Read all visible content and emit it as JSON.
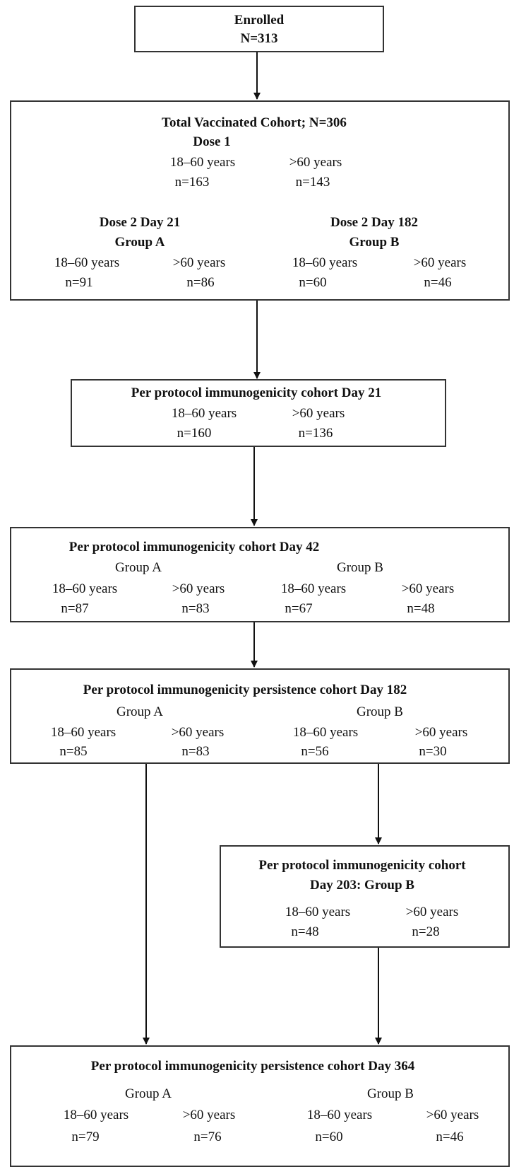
{
  "enrolled": {
    "title": "Enrolled",
    "n": "N=313"
  },
  "tvc": {
    "title": "Total Vaccinated Cohort; N=306",
    "dose1_label": "Dose 1",
    "dose1": {
      "age_a": "18–60 years",
      "n_a": "n=163",
      "age_b": ">60 years",
      "n_b": "n=143"
    },
    "group_a": {
      "line1": "Dose 2 Day 21",
      "line2": "Group A",
      "age_a": "18–60 years",
      "n_a": "n=91",
      "age_b": ">60 years",
      "n_b": "n=86"
    },
    "group_b": {
      "line1": "Dose 2 Day 182",
      "line2": "Group B",
      "age_a": "18–60 years",
      "n_a": "n=60",
      "age_b": ">60 years",
      "n_b": "n=46"
    }
  },
  "pp21": {
    "title": "Per protocol immunogenicity cohort Day 21",
    "age_a": "18–60 years",
    "n_a": "n=160",
    "age_b": ">60 years",
    "n_b": "n=136"
  },
  "pp42": {
    "title": "Per protocol immunogenicity cohort Day 42",
    "group_a": {
      "label": "Group A",
      "age_a": "18–60 years",
      "n_a": "n=87",
      "age_b": ">60 years",
      "n_b": "n=83"
    },
    "group_b": {
      "label": "Group B",
      "age_a": "18–60 years",
      "n_a": "n=67",
      "age_b": ">60 years",
      "n_b": "n=48"
    }
  },
  "pp182": {
    "title": "Per protocol immunogenicity persistence  cohort Day 182",
    "group_a": {
      "label": "Group A",
      "age_a": "18–60 years",
      "n_a": "n=85",
      "age_b": ">60 years",
      "n_b": "n=83"
    },
    "group_b": {
      "label": "Group B",
      "age_a": "18–60 years",
      "n_a": "n=56",
      "age_b": ">60 years",
      "n_b": "n=30"
    }
  },
  "pp203": {
    "title_line1": "Per protocol immunogenicity cohort",
    "title_line2": "Day 203: Group B",
    "age_a": "18–60 years",
    "n_a": "n=48",
    "age_b": ">60 years",
    "n_b": "n=28"
  },
  "pp364": {
    "title": "Per protocol immunogenicity persistence  cohort Day 364",
    "group_a": {
      "label": "Group A",
      "age_a": "18–60 years",
      "n_a": "n=79",
      "age_b": ">60 years",
      "n_b": "n=76"
    },
    "group_b": {
      "label": "Group B",
      "age_a": "18–60 years",
      "n_a": "n=60",
      "age_b": ">60 years",
      "n_b": "n=46"
    }
  }
}
